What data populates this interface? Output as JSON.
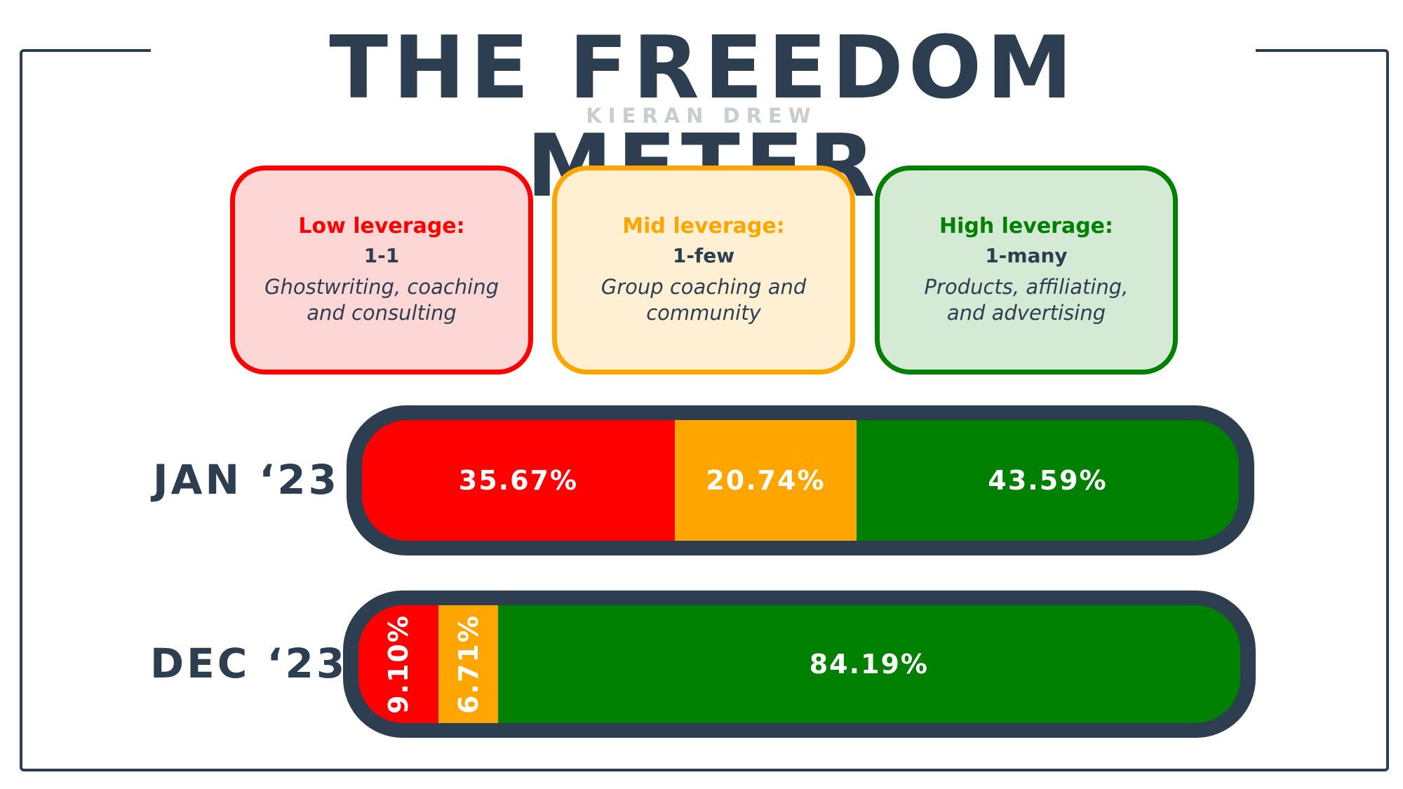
{
  "title": "THE FREEDOM METER",
  "author": "KIERAN DREW",
  "colors": {
    "low": "#ff0000",
    "mid": "#ffa500",
    "high": "#008000",
    "dark": "#2c3e50"
  },
  "legend": [
    {
      "title": "Low leverage:",
      "sub": "1-1",
      "desc": "Ghostwriting, coaching and consulting",
      "color": "#ff0000",
      "bg": "#fdd6d6"
    },
    {
      "title": "Mid leverage:",
      "sub": "1-few",
      "desc": "Group coaching and community",
      "color": "#ffa500",
      "bg": "#fff0d4"
    },
    {
      "title": "High leverage:",
      "sub": "1-many",
      "desc": "Products, affiliating, and advertising",
      "color": "#008000",
      "bg": "#d5ead5"
    }
  ],
  "chart_data": {
    "type": "bar",
    "orientation": "horizontal",
    "stacked": true,
    "normalized_percent": true,
    "categories": [
      "JAN ‘23",
      "DEC ‘23"
    ],
    "series": [
      {
        "name": "Low leverage",
        "color": "#ff0000",
        "values": [
          35.67,
          9.1
        ],
        "labels": [
          "35.67%",
          "9.10%"
        ]
      },
      {
        "name": "Mid leverage",
        "color": "#ffa500",
        "values": [
          20.74,
          6.71
        ],
        "labels": [
          "20.74%",
          "6.71%"
        ]
      },
      {
        "name": "High leverage",
        "color": "#008000",
        "values": [
          43.59,
          84.19
        ],
        "labels": [
          "43.59%",
          "84.19%"
        ]
      }
    ]
  }
}
